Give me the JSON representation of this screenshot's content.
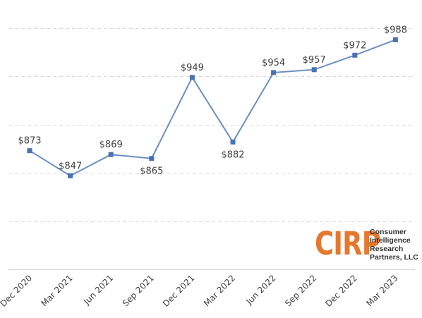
{
  "chart_data": {
    "type": "line",
    "title": "",
    "xlabel": "",
    "ylabel": "",
    "categories": [
      "Dec 2020",
      "Mar 2021",
      "Jun 2021",
      "Sep 2021",
      "Dec 2021",
      "Mar 2022",
      "Jun 2022",
      "Sep 2022",
      "Dec 2022",
      "Mar 2023"
    ],
    "series": [
      {
        "values": [
          873,
          847,
          869,
          865,
          949,
          882,
          954,
          957,
          972,
          988
        ],
        "labels": [
          "$873",
          "$847",
          "$869",
          "$865",
          "$949",
          "$882",
          "$954",
          "$957",
          "$972",
          "$988"
        ],
        "color": "#4a72b0"
      }
    ],
    "ylim": [
      750,
      1000
    ],
    "grid": true,
    "legend": "none",
    "label_position": [
      "above",
      "above",
      "above",
      "below",
      "above",
      "below",
      "above",
      "above",
      "above",
      "above"
    ]
  },
  "logo": {
    "mark": "CIRP",
    "mark_color": "#e8772e",
    "lines": [
      "Consumer",
      "Intelligence",
      "Research",
      "Partners, LLC"
    ]
  }
}
